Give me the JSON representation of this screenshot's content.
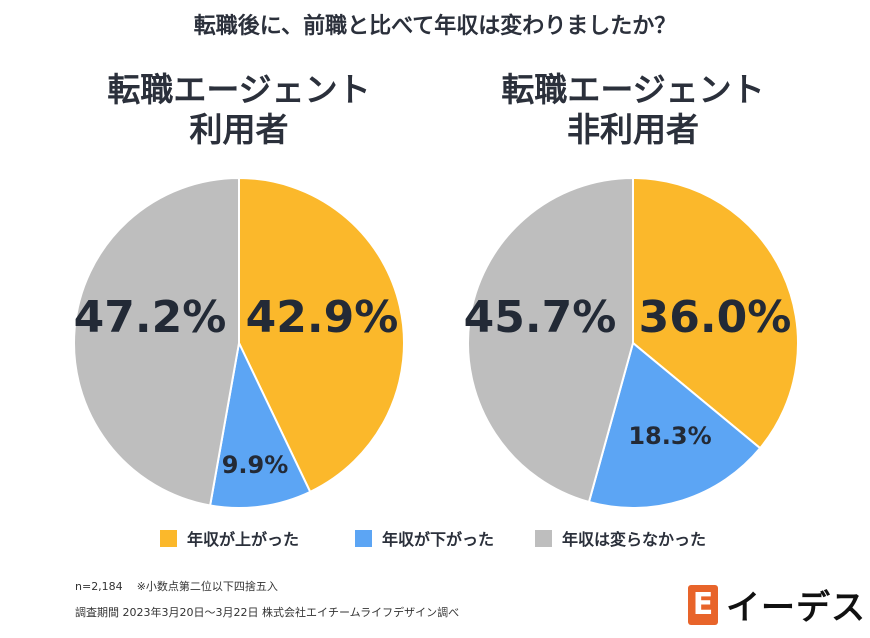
{
  "title": "転職後に、前職と比べて年収は変わりましたか？",
  "chart_data": [
    {
      "type": "pie",
      "title": "転職エージェント\n利用者",
      "title_lines": [
        "転職エージェント",
        "利用者"
      ],
      "categories": [
        "年収が上がった",
        "年収が下がった",
        "年収は変らなかった"
      ],
      "values": [
        42.9,
        9.9,
        47.2
      ],
      "labels": [
        "42.9%",
        "9.9%",
        "47.2%"
      ]
    },
    {
      "type": "pie",
      "title": "転職エージェント\n非利用者",
      "title_lines": [
        "転職エージェント",
        "非利用者"
      ],
      "categories": [
        "年収が上がった",
        "年収が下がった",
        "年収は変らなかった"
      ],
      "values": [
        36.0,
        18.3,
        45.7
      ],
      "labels": [
        "36.0%",
        "18.3%",
        "45.7%"
      ]
    }
  ],
  "legend": [
    "年収が上がった",
    "年収が下がった",
    "年収は変らなかった"
  ],
  "colors": [
    "#FBB82B",
    "#5CA5F4",
    "#BEBEBE"
  ],
  "footnote": {
    "n": "n=2,184",
    "note": "※小数点第二位以下四捨五入",
    "survey": "調査期間 2023年3月20日～3月22日 株式会社エイチームライフデザイン調べ"
  },
  "logo": {
    "mark": "E",
    "text": "イーデス"
  }
}
